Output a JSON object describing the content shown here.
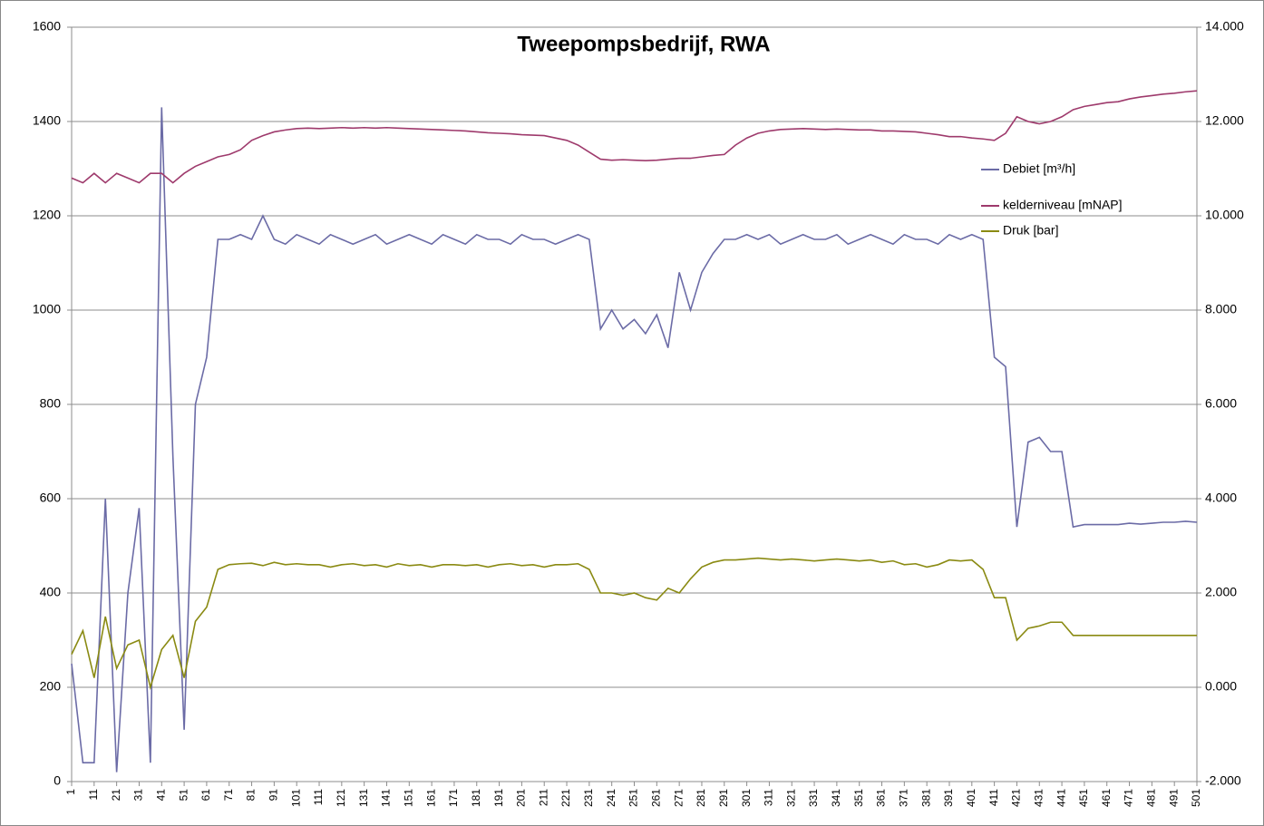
{
  "chart_data": {
    "type": "line",
    "title": "Tweepompsbedrijf, RWA",
    "x": [
      1,
      6,
      11,
      16,
      21,
      26,
      31,
      36,
      41,
      46,
      51,
      56,
      61,
      66,
      71,
      76,
      81,
      86,
      91,
      96,
      101,
      106,
      111,
      116,
      121,
      126,
      131,
      136,
      141,
      146,
      151,
      156,
      161,
      166,
      171,
      176,
      181,
      186,
      191,
      196,
      201,
      206,
      211,
      216,
      221,
      226,
      231,
      236,
      241,
      246,
      251,
      256,
      261,
      266,
      271,
      276,
      281,
      286,
      291,
      296,
      301,
      306,
      311,
      316,
      321,
      326,
      331,
      336,
      341,
      346,
      351,
      356,
      361,
      366,
      371,
      376,
      381,
      386,
      391,
      396,
      401,
      406,
      411,
      416,
      421,
      426,
      431,
      436,
      441,
      446,
      451,
      456,
      461,
      466,
      471,
      476,
      481,
      486,
      491,
      496,
      501
    ],
    "xlim": [
      1,
      501
    ],
    "xticks": [
      1,
      11,
      21,
      31,
      41,
      51,
      61,
      71,
      81,
      91,
      101,
      111,
      121,
      131,
      141,
      151,
      161,
      171,
      181,
      191,
      201,
      211,
      221,
      231,
      241,
      251,
      261,
      271,
      281,
      291,
      301,
      311,
      321,
      331,
      341,
      351,
      361,
      371,
      381,
      391,
      401,
      411,
      421,
      431,
      441,
      451,
      461,
      471,
      481,
      491,
      501
    ],
    "ylim": [
      0,
      1600
    ],
    "yticks": [
      0,
      200,
      400,
      600,
      800,
      1000,
      1200,
      1400,
      1600
    ],
    "y2lim": [
      -2,
      14
    ],
    "y2ticks": [
      {
        "value": -2,
        "label": "-2.000"
      },
      {
        "value": 0,
        "label": "0.000"
      },
      {
        "value": 2,
        "label": "2.000"
      },
      {
        "value": 4,
        "label": "4.000"
      },
      {
        "value": 6,
        "label": "6.000"
      },
      {
        "value": 8,
        "label": "8.000"
      },
      {
        "value": 10,
        "label": "10.000"
      },
      {
        "value": 12,
        "label": "12.000"
      },
      {
        "value": 14,
        "label": "14.000"
      }
    ],
    "grid": true,
    "legend": "right",
    "series": [
      {
        "name": "Debiet [m³/h]",
        "color": "#6b6ba6",
        "values": [
          250,
          40,
          40,
          600,
          20,
          400,
          580,
          40,
          1430,
          690,
          110,
          800,
          900,
          1150,
          1150,
          1160,
          1150,
          1200,
          1150,
          1140,
          1160,
          1150,
          1140,
          1160,
          1150,
          1140,
          1150,
          1160,
          1140,
          1150,
          1160,
          1150,
          1140,
          1160,
          1150,
          1140,
          1160,
          1150,
          1150,
          1140,
          1160,
          1150,
          1150,
          1140,
          1150,
          1160,
          1150,
          960,
          1000,
          960,
          980,
          950,
          990,
          920,
          1080,
          1000,
          1080,
          1120,
          1150,
          1150,
          1160,
          1150,
          1160,
          1140,
          1150,
          1160,
          1150,
          1150,
          1160,
          1140,
          1150,
          1160,
          1150,
          1140,
          1160,
          1150,
          1150,
          1140,
          1160,
          1150,
          1160,
          1150,
          900,
          880,
          540,
          720,
          730,
          700,
          700,
          540,
          545,
          545,
          545,
          545,
          548,
          546,
          548,
          550,
          550,
          552,
          550
        ]
      },
      {
        "name": "kelderniveau [mNAP]",
        "color": "#9e3a6c",
        "axis": "y2",
        "values": [
          10.8,
          10.7,
          10.9,
          10.7,
          10.9,
          10.8,
          10.7,
          10.9,
          10.9,
          10.7,
          10.9,
          11.05,
          11.15,
          11.25,
          11.3,
          11.4,
          11.6,
          11.7,
          11.78,
          11.82,
          11.85,
          11.86,
          11.85,
          11.86,
          11.87,
          11.86,
          11.87,
          11.86,
          11.87,
          11.86,
          11.85,
          11.84,
          11.83,
          11.82,
          11.81,
          11.8,
          11.78,
          11.76,
          11.75,
          11.74,
          11.72,
          11.71,
          11.7,
          11.65,
          11.6,
          11.5,
          11.35,
          11.2,
          11.18,
          11.19,
          11.18,
          11.17,
          11.18,
          11.2,
          11.22,
          11.22,
          11.25,
          11.28,
          11.3,
          11.5,
          11.65,
          11.75,
          11.8,
          11.83,
          11.84,
          11.85,
          11.84,
          11.83,
          11.84,
          11.83,
          11.82,
          11.82,
          11.8,
          11.8,
          11.79,
          11.78,
          11.75,
          11.72,
          11.68,
          11.68,
          11.65,
          11.63,
          11.6,
          11.75,
          12.1,
          12.0,
          11.95,
          12.0,
          12.1,
          12.25,
          12.32,
          12.36,
          12.4,
          12.42,
          12.48,
          12.52,
          12.55,
          12.58,
          12.6,
          12.63,
          12.65
        ]
      },
      {
        "name": "Druk [bar]",
        "color": "#8a8a12",
        "axis": "y2",
        "values": [
          0.7,
          1.2,
          0.2,
          1.5,
          0.4,
          0.9,
          1.0,
          0.0,
          0.8,
          1.1,
          0.2,
          1.4,
          1.7,
          2.5,
          2.6,
          2.62,
          2.63,
          2.58,
          2.65,
          2.6,
          2.62,
          2.6,
          2.6,
          2.55,
          2.6,
          2.62,
          2.58,
          2.6,
          2.55,
          2.62,
          2.58,
          2.6,
          2.55,
          2.6,
          2.6,
          2.58,
          2.6,
          2.55,
          2.6,
          2.62,
          2.58,
          2.6,
          2.55,
          2.6,
          2.6,
          2.62,
          2.5,
          2.0,
          2.0,
          1.95,
          2.0,
          1.9,
          1.85,
          2.1,
          2.0,
          2.3,
          2.55,
          2.65,
          2.7,
          2.7,
          2.72,
          2.74,
          2.72,
          2.7,
          2.72,
          2.7,
          2.68,
          2.7,
          2.72,
          2.7,
          2.68,
          2.7,
          2.65,
          2.68,
          2.6,
          2.62,
          2.55,
          2.6,
          2.7,
          2.68,
          2.7,
          2.5,
          1.9,
          1.9,
          1.0,
          1.25,
          1.3,
          1.38,
          1.38,
          1.1,
          1.1,
          1.1,
          1.1,
          1.1,
          1.1,
          1.1,
          1.1,
          1.1,
          1.1,
          1.1,
          1.1
        ]
      }
    ]
  }
}
